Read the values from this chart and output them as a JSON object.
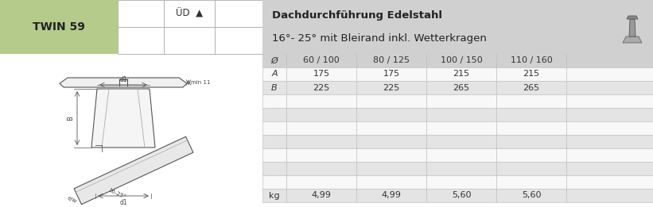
{
  "title_line1": "Dachdurchführung Edelstahl",
  "title_line2": "16°- 25° mit Bleirand inkl. Wetterkragen",
  "product_name": "TWIN 59",
  "header_label": "ÜD  ▲",
  "col_headers": [
    "Ø",
    "60 / 100",
    "80 / 125",
    "100 / 150",
    "110 / 160",
    ""
  ],
  "row_labels": [
    "Ø",
    "A",
    "B",
    "",
    "",
    "",
    "",
    "",
    "",
    "",
    "kg"
  ],
  "table_data": [
    [
      "175",
      "175",
      "215",
      "215",
      ""
    ],
    [
      "225",
      "225",
      "265",
      "265",
      ""
    ],
    [
      "",
      "",
      "",
      "",
      ""
    ],
    [
      "",
      "",
      "",
      "",
      ""
    ],
    [
      "",
      "",
      "",
      "",
      ""
    ],
    [
      "",
      "",
      "",
      "",
      ""
    ],
    [
      "",
      "",
      "",
      "",
      ""
    ],
    [
      "",
      "",
      "",
      "",
      ""
    ],
    [
      "",
      "",
      "",
      "",
      ""
    ],
    [
      "4,99",
      "4,99",
      "5,60",
      "5,60",
      ""
    ]
  ],
  "green_color": "#b5cb8b",
  "header_bg": "#d0d0d0",
  "row_alt_bg": "#e4e4e4",
  "row_white_bg": "#f8f8f8",
  "top_section_bg": "#d0d0d0",
  "text_color": "#333333"
}
